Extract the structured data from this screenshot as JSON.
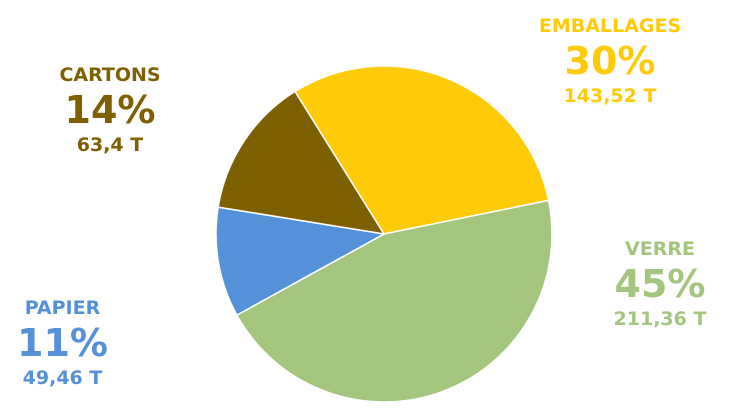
{
  "chart_data": {
    "type": "pie",
    "slices": [
      {
        "name": "EMBALLAGES",
        "percent_label": "30%",
        "quantity_label": "143,52 T",
        "value": 143.52,
        "color": "#FFCA08"
      },
      {
        "name": "VERRE",
        "percent_label": "45%",
        "quantity_label": "211,36 T",
        "value": 211.36,
        "color": "#A3C57D"
      },
      {
        "name": "PAPIER",
        "percent_label": "11%",
        "quantity_label": "49,46 T",
        "value": 49.46,
        "color": "#5591D8"
      },
      {
        "name": "CARTONS",
        "percent_label": "14%",
        "quantity_label": "63,4 T",
        "value": 63.4,
        "color": "#7F6000"
      }
    ]
  }
}
